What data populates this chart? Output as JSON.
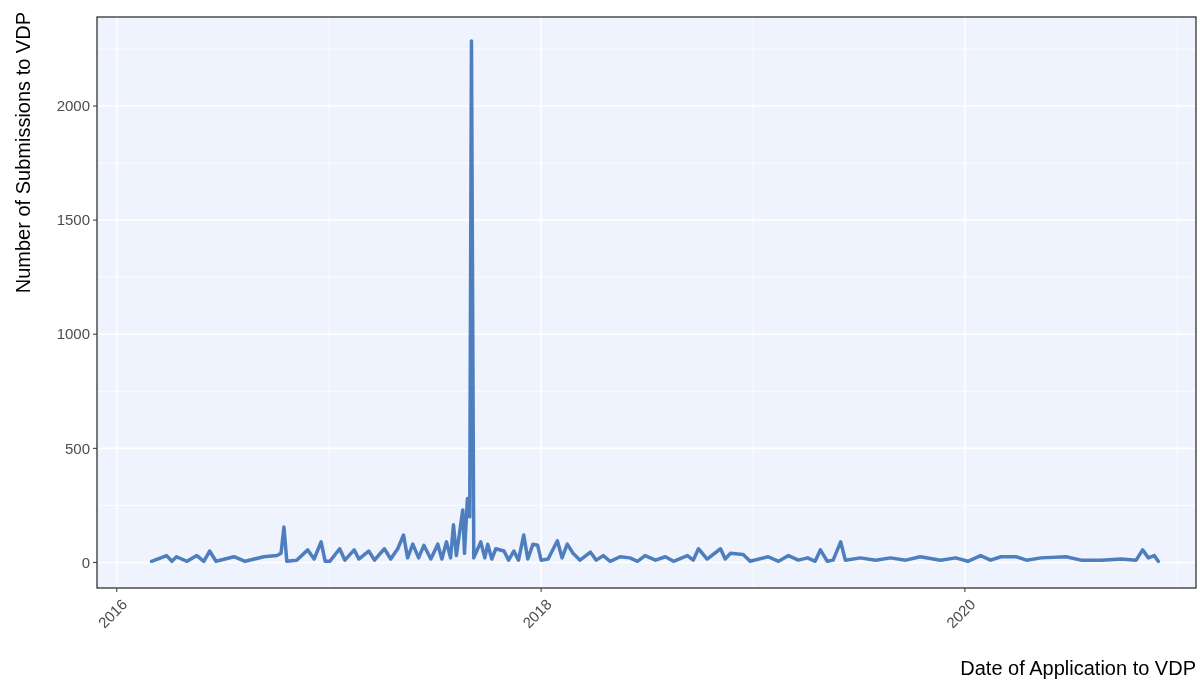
{
  "chart_data": {
    "type": "line",
    "xlabel": "Date of Application to VDP",
    "ylabel": "Number of Submissions to VDP",
    "xlim": [
      "2015-11-28",
      "2021-02-02"
    ],
    "xticks": [
      {
        "value": "2016-01-01",
        "label": "2016"
      },
      {
        "value": "2017-01-01",
        "label": null
      },
      {
        "value": "2018-01-01",
        "label": "2018"
      },
      {
        "value": "2019-01-01",
        "label": null
      },
      {
        "value": "2020-01-01",
        "label": "2020"
      },
      {
        "value": "2021-01-01",
        "label": null
      }
    ],
    "ylim": [
      -112,
      2390
    ],
    "yticks": [
      0,
      {
        "value": 250,
        "label": null
      },
      500,
      {
        "value": 750,
        "label": null
      },
      1000,
      {
        "value": 1250,
        "label": null
      },
      1500,
      {
        "value": 1750,
        "label": null
      },
      2000,
      {
        "value": 2250,
        "label": null
      }
    ],
    "grid": true,
    "line_style": "solid",
    "series": [
      {
        "color": "#4e7ebd",
        "x": [
          "2016-03-01",
          "2016-03-27",
          "2016-04-05",
          "2016-04-13",
          "2016-05-01",
          "2016-05-18",
          "2016-05-30",
          "2016-06-09",
          "2016-06-20",
          "2016-07-21",
          "2016-08-09",
          "2016-09-10",
          "2016-10-03",
          "2016-10-10",
          "2016-10-15",
          "2016-10-20",
          "2016-11-06",
          "2016-11-25",
          "2016-12-06",
          "2016-12-18",
          "2016-12-25",
          "2017-01-02",
          "2017-01-19",
          "2017-01-28",
          "2017-02-13",
          "2017-02-21",
          "2017-03-10",
          "2017-03-20",
          "2017-04-06",
          "2017-04-17",
          "2017-04-29",
          "2017-05-09",
          "2017-05-16",
          "2017-05-25",
          "2017-06-04",
          "2017-06-13",
          "2017-06-25",
          "2017-07-07",
          "2017-07-14",
          "2017-07-22",
          "2017-07-29",
          "2017-08-03",
          "2017-08-08",
          "2017-08-19",
          "2017-08-22",
          "2017-08-27",
          "2017-08-31",
          "2017-09-03",
          "2017-09-07",
          "2017-09-19",
          "2017-09-26",
          "2017-10-01",
          "2017-10-08",
          "2017-10-15",
          "2017-10-29",
          "2017-11-06",
          "2017-11-15",
          "2017-11-23",
          "2017-12-02",
          "2017-12-09",
          "2017-12-18",
          "2017-12-26",
          "2018-01-01",
          "2018-01-13",
          "2018-01-29",
          "2018-02-06",
          "2018-02-15",
          "2018-02-25",
          "2018-03-09",
          "2018-03-27",
          "2018-04-06",
          "2018-04-18",
          "2018-04-30",
          "2018-05-17",
          "2018-06-03",
          "2018-06-16",
          "2018-06-29",
          "2018-07-17",
          "2018-08-03",
          "2018-08-17",
          "2018-09-10",
          "2018-09-20",
          "2018-09-29",
          "2018-10-14",
          "2018-11-06",
          "2018-11-14",
          "2018-11-23",
          "2018-12-15",
          "2018-12-27",
          "2019-01-27",
          "2019-02-14",
          "2019-03-03",
          "2019-03-20",
          "2019-04-05",
          "2019-04-18",
          "2019-04-27",
          "2019-05-09",
          "2019-05-19",
          "2019-06-01",
          "2019-06-09",
          "2019-07-05",
          "2019-07-31",
          "2019-08-26",
          "2019-09-21",
          "2019-10-16",
          "2019-11-20",
          "2019-12-16",
          "2020-01-06",
          "2020-01-28",
          "2020-02-14",
          "2020-03-03",
          "2020-03-29",
          "2020-04-16",
          "2020-05-11",
          "2020-06-23",
          "2020-07-19",
          "2020-08-23",
          "2020-09-26",
          "2020-10-22",
          "2020-11-02",
          "2020-11-12",
          "2020-11-22",
          "2020-11-29"
        ],
        "values": [
          5,
          30,
          5,
          25,
          5,
          30,
          5,
          50,
          5,
          25,
          5,
          25,
          30,
          40,
          155,
          5,
          10,
          55,
          15,
          90,
          5,
          5,
          60,
          10,
          55,
          15,
          50,
          10,
          60,
          15,
          60,
          120,
          20,
          80,
          20,
          75,
          15,
          80,
          15,
          90,
          20,
          165,
          30,
          230,
          40,
          280,
          200,
          2285,
          20,
          90,
          20,
          80,
          15,
          60,
          50,
          10,
          50,
          10,
          120,
          15,
          80,
          75,
          10,
          15,
          95,
          20,
          80,
          40,
          10,
          45,
          10,
          30,
          5,
          25,
          20,
          5,
          30,
          10,
          25,
          5,
          30,
          10,
          60,
          15,
          60,
          15,
          40,
          35,
          5,
          25,
          5,
          30,
          10,
          20,
          5,
          55,
          5,
          10,
          90,
          10,
          20,
          10,
          20,
          10,
          25,
          10,
          20,
          5,
          30,
          10,
          25,
          25,
          10,
          20,
          25,
          10,
          10,
          15,
          10,
          55,
          20,
          30,
          5
        ]
      }
    ]
  }
}
